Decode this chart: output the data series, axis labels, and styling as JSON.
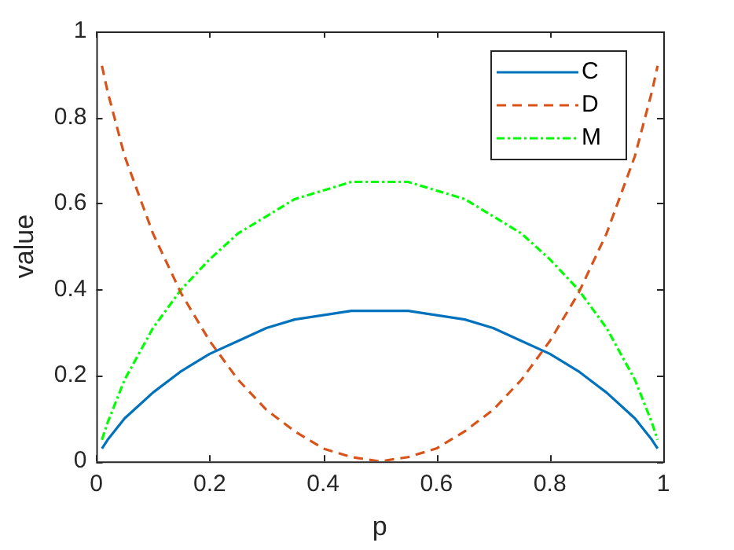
{
  "chart_data": {
    "type": "line",
    "xlabel": "p",
    "ylabel": "value",
    "x": [
      0.01,
      0.02,
      0.05,
      0.1,
      0.15,
      0.2,
      0.25,
      0.3,
      0.35,
      0.4,
      0.45,
      0.5,
      0.55,
      0.6,
      0.65,
      0.7,
      0.75,
      0.8,
      0.85,
      0.9,
      0.95,
      0.98,
      0.99
    ],
    "series": [
      {
        "name": "C",
        "color": "#0072bd",
        "line_style": "solid",
        "values": [
          0.03,
          0.05,
          0.1,
          0.16,
          0.21,
          0.25,
          0.28,
          0.31,
          0.33,
          0.34,
          0.35,
          0.35,
          0.35,
          0.34,
          0.33,
          0.31,
          0.28,
          0.25,
          0.21,
          0.16,
          0.1,
          0.05,
          0.03
        ]
      },
      {
        "name": "D",
        "color": "#d95319",
        "line_style": "dashed",
        "values": [
          0.92,
          0.86,
          0.71,
          0.53,
          0.39,
          0.28,
          0.19,
          0.12,
          0.07,
          0.03,
          0.01,
          0,
          0.01,
          0.03,
          0.07,
          0.12,
          0.19,
          0.28,
          0.39,
          0.53,
          0.71,
          0.86,
          0.92
        ]
      },
      {
        "name": "M",
        "color": "#00ff00",
        "line_style": "dotted",
        "values": [
          0.05,
          0.09,
          0.19,
          0.31,
          0.4,
          0.47,
          0.53,
          0.57,
          0.61,
          0.63,
          0.65,
          0.65,
          0.65,
          0.63,
          0.61,
          0.57,
          0.53,
          0.47,
          0.4,
          0.31,
          0.19,
          0.09,
          0.05
        ]
      }
    ],
    "xlim": [
      0,
      1
    ],
    "xticks": [
      0,
      0.2,
      0.4,
      0.6,
      0.8,
      1
    ],
    "ylim": [
      0,
      1
    ],
    "yticks": [
      0,
      0.2,
      0.4,
      0.6,
      0.8,
      1
    ],
    "grid": false,
    "legend": "top right",
    "marker": "none"
  }
}
